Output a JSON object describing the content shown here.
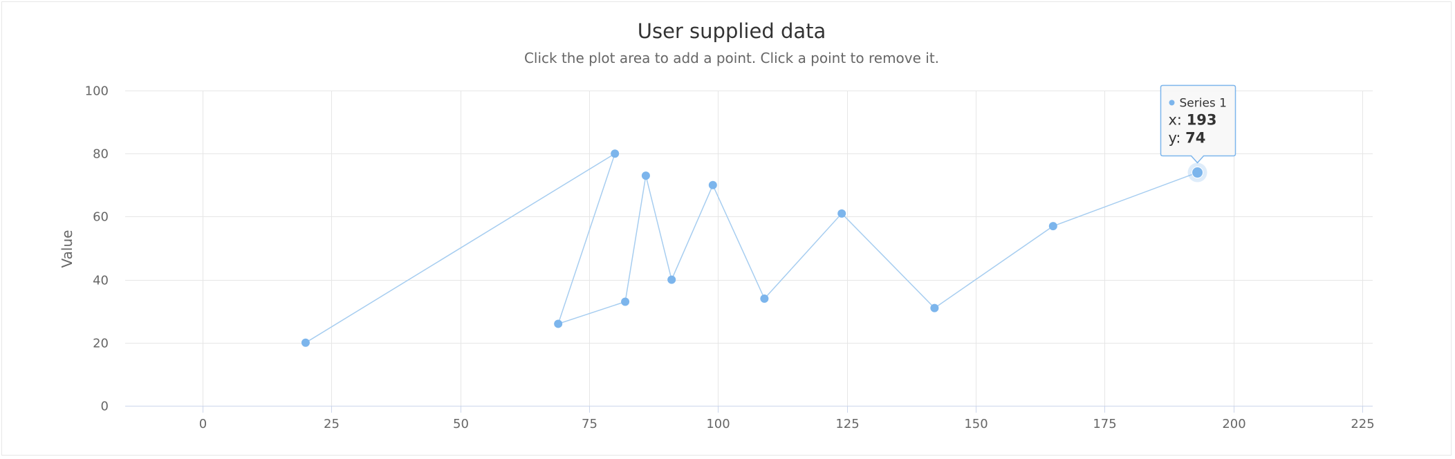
{
  "chart_data": {
    "type": "scatter",
    "title": "User supplied data",
    "subtitle": "Click the plot area to add a point. Click a point to remove it.",
    "xlabel": "",
    "ylabel": "Value",
    "xlim": [
      -15,
      227
    ],
    "ylim": [
      0,
      100
    ],
    "x_ticks": [
      0,
      25,
      50,
      75,
      100,
      125,
      150,
      175,
      200,
      225
    ],
    "y_ticks": [
      0,
      20,
      40,
      60,
      80,
      100
    ],
    "grid": true,
    "line_color": "#a6cdf0",
    "marker_color": "#7cb5ec",
    "gridline_color": "#e6e6e6",
    "series": [
      {
        "name": "Series 1",
        "points": [
          {
            "x": 20,
            "y": 20
          },
          {
            "x": 80,
            "y": 80
          },
          {
            "x": 69,
            "y": 26
          },
          {
            "x": 82,
            "y": 33
          },
          {
            "x": 86,
            "y": 73
          },
          {
            "x": 91,
            "y": 40
          },
          {
            "x": 99,
            "y": 70
          },
          {
            "x": 109,
            "y": 34
          },
          {
            "x": 124,
            "y": 61
          },
          {
            "x": 142,
            "y": 31
          },
          {
            "x": 165,
            "y": 57
          },
          {
            "x": 193,
            "y": 74
          }
        ]
      }
    ],
    "tooltip": {
      "series_name": "Series 1",
      "x_label": "x: ",
      "x_value": "193",
      "y_label": "y: ",
      "y_value": "74",
      "point_index": 11
    }
  }
}
